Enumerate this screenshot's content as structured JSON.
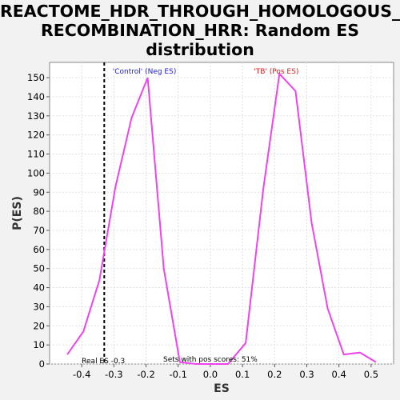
{
  "chart_data": {
    "type": "line",
    "title_line1": "REACTOME_HDR_THROUGH_HOMOLOGOUS_",
    "title_line2": "RECOMBINATION_HRR: Random ES",
    "title_line3": "distribution",
    "xlabel": "ES",
    "ylabel": "P(ES)",
    "xlim": [
      -0.5,
      0.57
    ],
    "ylim": [
      0,
      158
    ],
    "xticks": [
      -0.4,
      -0.3,
      -0.2,
      -0.1,
      0.0,
      0.1,
      0.2,
      0.3,
      0.4,
      0.5
    ],
    "xtick_labels": [
      "-0.4",
      "-0.3",
      "-0.2",
      "-0.1",
      "0.0",
      "0.1",
      "0.2",
      "0.3",
      "0.4",
      "0.5"
    ],
    "yticks": [
      0,
      10,
      20,
      30,
      40,
      50,
      60,
      70,
      80,
      90,
      100,
      110,
      120,
      130,
      140,
      150
    ],
    "ytick_labels": [
      "0",
      "10",
      "20",
      "30",
      "40",
      "50",
      "60",
      "70",
      "80",
      "90",
      "100",
      "110",
      "120",
      "130",
      "140",
      "150"
    ],
    "grid": true,
    "line_color": "#ee44ee",
    "series": [
      {
        "x": [
          -0.445,
          -0.395,
          -0.345,
          -0.295,
          -0.245,
          -0.195,
          -0.145,
          -0.095,
          -0.045,
          0.005,
          0.055,
          0.11,
          0.165,
          0.215,
          0.265,
          0.315,
          0.365,
          0.415,
          0.465,
          0.515
        ],
        "y": [
          5,
          17,
          44,
          93,
          129,
          150,
          50,
          1,
          0,
          0,
          0,
          11,
          92,
          152,
          143,
          74,
          29,
          5,
          6,
          1
        ]
      }
    ],
    "real_es": -0.33,
    "real_es_label": "Real ES -0.3",
    "neg_label": "'Control' (Neg ES)",
    "neg_label_color": "#2222cc",
    "pos_label": "'TB' (Pos ES)",
    "pos_label_color": "#cc2222",
    "pos_scores_label": "Sets with pos scores: 51%"
  }
}
